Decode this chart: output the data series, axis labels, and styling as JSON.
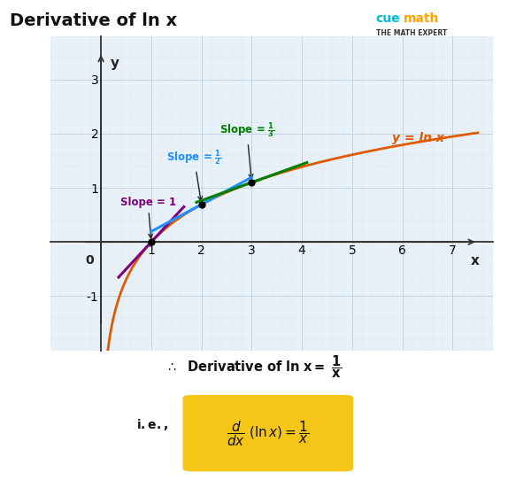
{
  "title": "Derivative of ln x",
  "title_fontsize": 14,
  "background_color": "#ffffff",
  "grid_color_minor": "#dce8f0",
  "grid_color_major": "#c0d4e4",
  "plot_bg": "#e8f0f8",
  "curve_color": "#e05a00",
  "curve_label": "y = ln x",
  "xlim": [
    -0.4,
    7.6
  ],
  "ylim": [
    -1.6,
    3.6
  ],
  "xticks": [
    1,
    2,
    3,
    4,
    5,
    6,
    7
  ],
  "yticks": [
    -1,
    1,
    2,
    3
  ],
  "xlabel": "x",
  "ylabel": "y",
  "tangent1_x0": 1.0,
  "tangent1_slope": 1.0,
  "tangent1_color": "#800080",
  "tangent1_extent": 0.65,
  "tangent2_x0": 2.0,
  "tangent2_slope": 0.5,
  "tangent2_color": "#1e90ff",
  "tangent2_extent": 1.0,
  "tangent3_x0": 3.0,
  "tangent3_slope": 0.3333,
  "tangent3_color": "#008000",
  "tangent3_extent": 1.1,
  "dot_color": "#000000",
  "dot_size": 6,
  "formula_box_color": "#F5C518",
  "formula_fontsize": 11,
  "tick_fontsize": 10,
  "label_fontsize": 11
}
